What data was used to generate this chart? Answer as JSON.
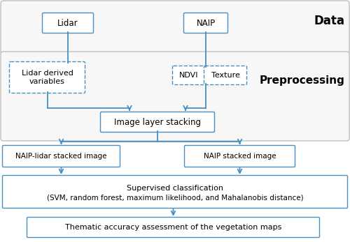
{
  "bg_color": "#ffffff",
  "box_color": "#4a8fc0",
  "panel_edge": "#c0c0c0",
  "panel_fill": "#f7f7f7",
  "arrow_color": "#4a8fc0",
  "label_data": "Data",
  "label_preprocessing": "Preprocessing",
  "box_lidar": "Lidar",
  "box_naip": "NAIP",
  "box_lidar_derived": "Lidar derived\nvariables",
  "box_ndvi": "NDVI",
  "box_texture": "Texture",
  "box_stacking": "Image layer stacking",
  "box_naip_lidar": "NAIP-lidar stacked image",
  "box_naip_stacked": "NAIP stacked image",
  "box_supervised_l1": "Supervised classification",
  "box_supervised_l2": "(SVM, random forest, maximum likelihood, and Mahalanobis distance)",
  "box_thematic": "Thematic accuracy assessment of the vegetation maps"
}
